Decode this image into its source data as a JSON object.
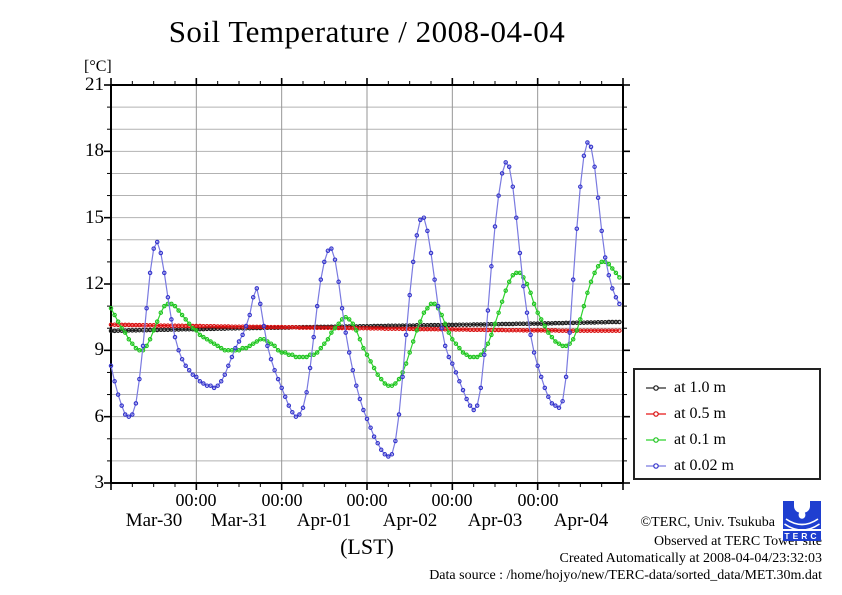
{
  "title": "Soil Temperature / 2008-04-04",
  "y_unit_label": "[°C]",
  "x_axis_label": "(LST)",
  "annotations": {
    "copyright": "©TERC, Univ. Tsukuba",
    "observed": "Observed at TERC Tower site",
    "created": "Created Automatically at 2008-04-04/23:32:03",
    "datasource": "Data source : /home/hojyo/new/TERC-data/sorted_data/MET.30m.dat",
    "logo_text": "TERC",
    "logo_color": "#1f3fd0"
  },
  "chart_data": {
    "type": "line",
    "title": "Soil Temperature / 2008-04-04",
    "xlabel": "(LST)",
    "ylabel": "[°C]",
    "ylim": [
      3,
      21
    ],
    "ytick_major_step": 3,
    "ytick_minor_step": 1,
    "grid": "on",
    "legend_position": "right",
    "x_total_hours": 144,
    "sample_interval_hours": 1,
    "x_start": "Mar-30 00:00",
    "x_end": "Apr-05 00:00",
    "ytick_labels": [
      "21",
      "18",
      "15",
      "12",
      "9",
      "6",
      "3"
    ],
    "time_tick_labels": [
      "00:00",
      "00:00",
      "00:00",
      "00:00",
      "00:00"
    ],
    "date_labels": [
      "Mar-30",
      "Mar-31",
      "Apr-01",
      "Apr-02",
      "Apr-03",
      "Apr-04"
    ],
    "series": [
      {
        "name": "at 1.0 m",
        "depth_m": 1.0,
        "line_color": "#2a2a2a",
        "marker_color": "#1a1a1a",
        "values": [
          9.88,
          9.88,
          9.89,
          9.89,
          9.89,
          9.9,
          9.9,
          9.9,
          9.91,
          9.91,
          9.91,
          9.92,
          9.92,
          9.92,
          9.93,
          9.93,
          9.93,
          9.94,
          9.94,
          9.94,
          9.95,
          9.95,
          9.95,
          9.95,
          9.96,
          9.96,
          9.96,
          9.97,
          9.97,
          9.97,
          9.98,
          9.98,
          9.98,
          9.99,
          9.99,
          9.99,
          10.0,
          10.0,
          10.0,
          10.0,
          10.01,
          10.01,
          10.01,
          10.02,
          10.02,
          10.02,
          10.02,
          10.02,
          10.03,
          10.03,
          10.03,
          10.04,
          10.04,
          10.04,
          10.05,
          10.05,
          10.05,
          10.05,
          10.06,
          10.06,
          10.06,
          10.06,
          10.07,
          10.07,
          10.07,
          10.07,
          10.08,
          10.08,
          10.08,
          10.08,
          10.09,
          10.09,
          10.09,
          10.09,
          10.1,
          10.1,
          10.1,
          10.1,
          10.11,
          10.11,
          10.11,
          10.11,
          10.12,
          10.12,
          10.12,
          10.12,
          10.13,
          10.13,
          10.13,
          10.13,
          10.14,
          10.14,
          10.14,
          10.14,
          10.15,
          10.15,
          10.15,
          10.15,
          10.16,
          10.16,
          10.16,
          10.16,
          10.17,
          10.17,
          10.17,
          10.17,
          10.18,
          10.18,
          10.18,
          10.18,
          10.19,
          10.19,
          10.19,
          10.19,
          10.2,
          10.2,
          10.2,
          10.2,
          10.21,
          10.21,
          10.21,
          10.21,
          10.22,
          10.22,
          10.22,
          10.23,
          10.23,
          10.23,
          10.24,
          10.24,
          10.24,
          10.25,
          10.25,
          10.25,
          10.26,
          10.26,
          10.26,
          10.27,
          10.27,
          10.27,
          10.28,
          10.28,
          10.28,
          10.28
        ]
      },
      {
        "name": "at 0.5 m",
        "depth_m": 0.5,
        "line_color": "#e81616",
        "marker_color": "#d80f0f",
        "values": [
          10.16,
          10.16,
          10.15,
          10.15,
          10.15,
          10.15,
          10.14,
          10.14,
          10.14,
          10.13,
          10.13,
          10.13,
          10.13,
          10.12,
          10.12,
          10.12,
          10.12,
          10.11,
          10.11,
          10.11,
          10.11,
          10.1,
          10.1,
          10.1,
          10.1,
          10.1,
          10.09,
          10.09,
          10.09,
          10.09,
          10.08,
          10.08,
          10.08,
          10.08,
          10.07,
          10.07,
          10.07,
          10.07,
          10.07,
          10.06,
          10.06,
          10.06,
          10.06,
          10.06,
          10.05,
          10.05,
          10.05,
          10.05,
          10.05,
          10.04,
          10.04,
          10.04,
          10.04,
          10.03,
          10.03,
          10.03,
          10.03,
          10.03,
          10.02,
          10.02,
          10.02,
          10.02,
          10.02,
          10.01,
          10.01,
          10.01,
          10.01,
          10.01,
          10.0,
          10.0,
          10.0,
          10.0,
          10.0,
          9.99,
          9.99,
          9.99,
          9.99,
          9.98,
          9.98,
          9.98,
          9.98,
          9.98,
          9.97,
          9.97,
          9.97,
          9.97,
          9.97,
          9.96,
          9.96,
          9.96,
          9.96,
          9.96,
          9.95,
          9.95,
          9.95,
          9.95,
          9.95,
          9.94,
          9.94,
          9.94,
          9.94,
          9.93,
          9.93,
          9.93,
          9.93,
          9.93,
          9.92,
          9.92,
          9.92,
          9.92,
          9.92,
          9.91,
          9.91,
          9.91,
          9.91,
          9.91,
          9.9,
          9.9,
          9.9,
          9.9,
          9.9,
          9.9,
          9.9,
          9.9,
          9.9,
          9.9,
          9.89,
          9.89,
          9.89,
          9.89,
          9.89,
          9.89,
          9.89,
          9.89,
          9.89,
          9.89,
          9.89,
          9.89,
          9.89,
          9.89,
          9.89,
          9.89,
          9.89,
          9.89
        ]
      },
      {
        "name": "at 0.1 m",
        "depth_m": 0.1,
        "line_color": "#2ed32e",
        "marker_color": "#1fc41f",
        "values": [
          10.9,
          10.6,
          10.3,
          10.0,
          9.8,
          9.5,
          9.3,
          9.1,
          9.0,
          9.0,
          9.2,
          9.5,
          9.9,
          10.3,
          10.7,
          11.0,
          11.1,
          11.1,
          11.0,
          10.8,
          10.6,
          10.4,
          10.2,
          10.0,
          9.9,
          9.7,
          9.6,
          9.5,
          9.4,
          9.3,
          9.2,
          9.1,
          9.0,
          9.0,
          9.0,
          9.0,
          9.0,
          9.1,
          9.1,
          9.2,
          9.3,
          9.4,
          9.5,
          9.5,
          9.4,
          9.3,
          9.2,
          9.0,
          8.9,
          8.9,
          8.8,
          8.8,
          8.7,
          8.7,
          8.7,
          8.7,
          8.8,
          8.8,
          8.9,
          9.1,
          9.3,
          9.5,
          9.8,
          10.0,
          10.2,
          10.4,
          10.5,
          10.4,
          10.2,
          9.9,
          9.5,
          9.1,
          8.8,
          8.5,
          8.2,
          7.9,
          7.7,
          7.5,
          7.4,
          7.4,
          7.5,
          7.7,
          8.0,
          8.4,
          8.9,
          9.4,
          9.9,
          10.3,
          10.7,
          10.9,
          11.1,
          11.1,
          10.9,
          10.6,
          10.2,
          9.8,
          9.5,
          9.3,
          9.1,
          8.9,
          8.8,
          8.7,
          8.7,
          8.7,
          8.8,
          9.0,
          9.3,
          9.7,
          10.2,
          10.7,
          11.2,
          11.7,
          12.1,
          12.4,
          12.5,
          12.5,
          12.3,
          12.0,
          11.6,
          11.1,
          10.7,
          10.4,
          10.1,
          9.8,
          9.6,
          9.4,
          9.3,
          9.2,
          9.2,
          9.3,
          9.5,
          9.9,
          10.4,
          11.0,
          11.6,
          12.1,
          12.5,
          12.8,
          13.0,
          13.0,
          12.9,
          12.7,
          12.5,
          12.3
        ]
      },
      {
        "name": "at 0.02 m",
        "depth_m": 0.02,
        "line_color": "#7a7ae0",
        "marker_color": "#3434cc",
        "values": [
          8.3,
          7.6,
          7.0,
          6.5,
          6.1,
          6.0,
          6.1,
          6.6,
          7.7,
          9.2,
          10.9,
          12.5,
          13.6,
          13.9,
          13.4,
          12.5,
          11.4,
          10.4,
          9.6,
          9.0,
          8.6,
          8.3,
          8.1,
          7.9,
          7.8,
          7.6,
          7.5,
          7.4,
          7.4,
          7.3,
          7.4,
          7.6,
          7.9,
          8.3,
          8.7,
          9.1,
          9.4,
          9.7,
          10.1,
          10.6,
          11.4,
          11.8,
          11.1,
          10.1,
          9.2,
          8.6,
          8.1,
          7.7,
          7.3,
          6.9,
          6.5,
          6.2,
          6.0,
          6.1,
          6.4,
          7.1,
          8.2,
          9.6,
          11.0,
          12.2,
          13.0,
          13.5,
          13.6,
          13.1,
          12.1,
          10.9,
          9.8,
          8.9,
          8.1,
          7.4,
          6.8,
          6.3,
          5.9,
          5.5,
          5.1,
          4.8,
          4.5,
          4.3,
          4.2,
          4.3,
          4.9,
          6.1,
          7.8,
          9.7,
          11.5,
          13.0,
          14.2,
          14.9,
          15.0,
          14.4,
          13.4,
          12.2,
          11.0,
          10.0,
          9.2,
          8.7,
          8.4,
          8.0,
          7.6,
          7.2,
          6.8,
          6.5,
          6.3,
          6.5,
          7.3,
          8.8,
          10.8,
          12.8,
          14.6,
          16.0,
          17.0,
          17.5,
          17.3,
          16.4,
          15.0,
          13.4,
          11.9,
          10.7,
          9.7,
          8.9,
          8.3,
          7.8,
          7.3,
          6.9,
          6.6,
          6.5,
          6.4,
          6.7,
          7.8,
          9.8,
          12.2,
          14.5,
          16.4,
          17.8,
          18.4,
          18.2,
          17.3,
          15.9,
          14.4,
          13.2,
          12.4,
          11.8,
          11.4,
          11.1
        ]
      }
    ]
  }
}
